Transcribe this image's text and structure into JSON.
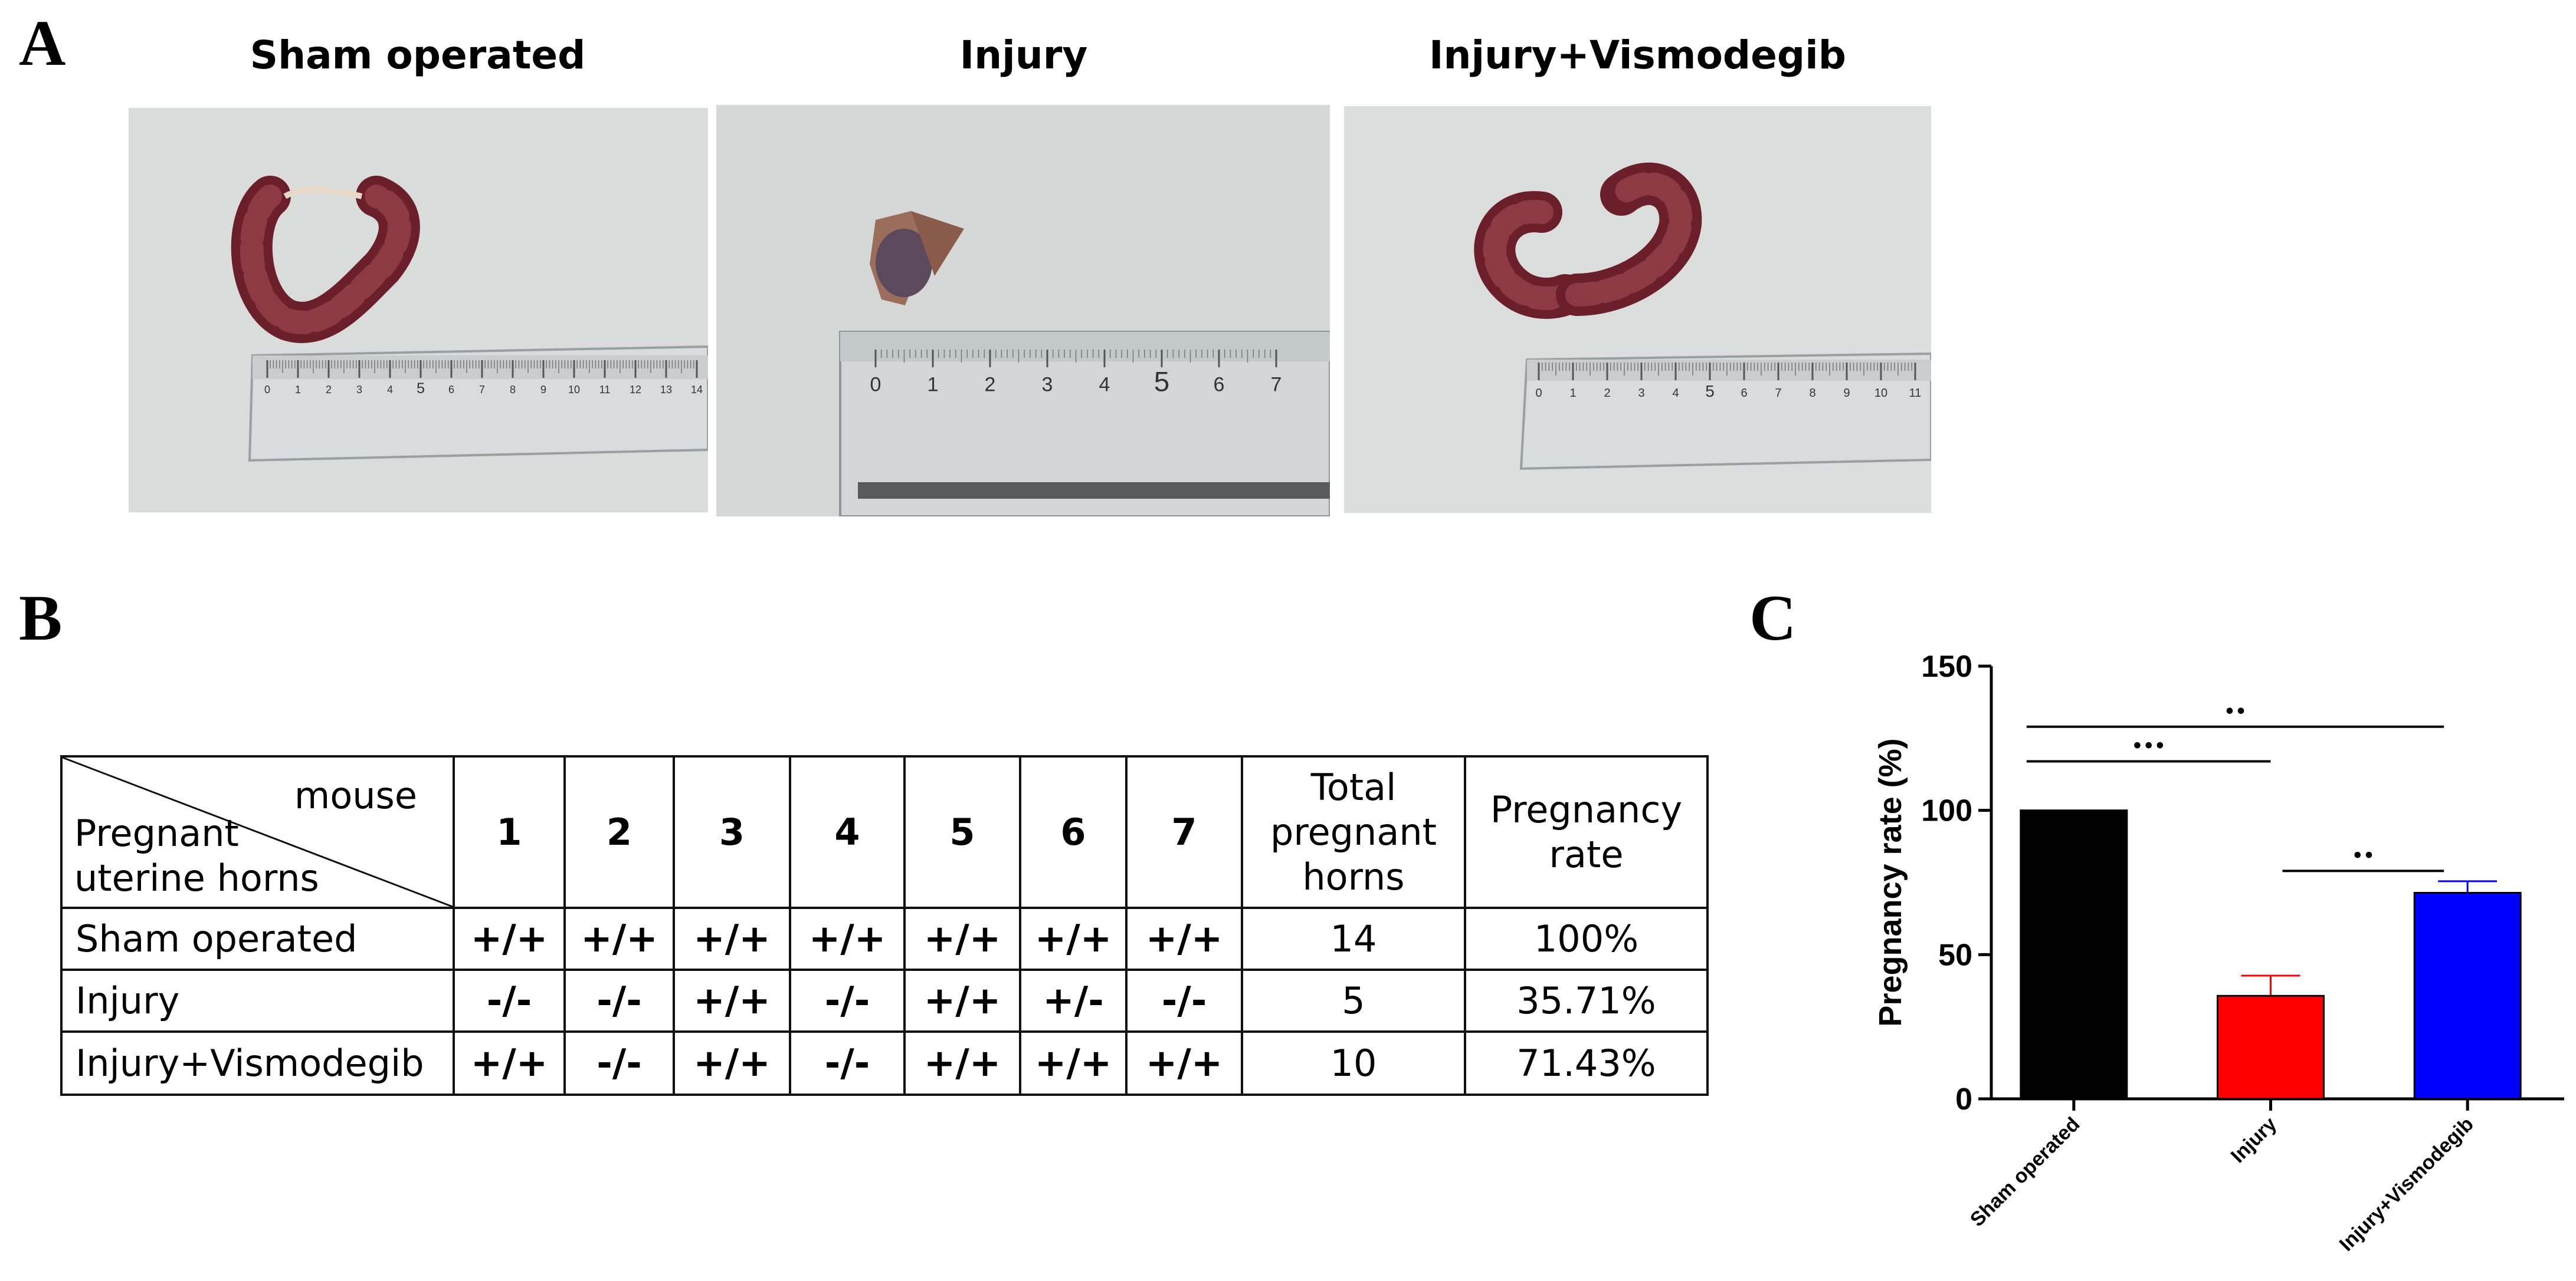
{
  "panels": {
    "a": "A",
    "b": "B",
    "c": "C"
  },
  "photos": [
    {
      "title": "Sham operated",
      "ruler_labels": [
        "0",
        "1",
        "2",
        "3",
        "4",
        "5",
        "6",
        "7",
        "8",
        "9",
        "10",
        "11",
        "12",
        "13",
        "14"
      ]
    },
    {
      "title": "Injury",
      "ruler_labels": [
        "0",
        "1",
        "2",
        "3",
        "4",
        "5",
        "6",
        "7"
      ]
    },
    {
      "title": "Injury+Vismodegib",
      "ruler_labels": [
        "0",
        "1",
        "2",
        "3",
        "4",
        "5",
        "6",
        "7",
        "8",
        "9",
        "10",
        "11"
      ]
    }
  ],
  "table": {
    "corner_top": "mouse",
    "corner_bottom_line1": "Pregnant",
    "corner_bottom_line2": "uterine horns",
    "mice": [
      "1",
      "2",
      "3",
      "4",
      "5",
      "6",
      "7"
    ],
    "total_line1": "Total",
    "total_line2": "pregnant",
    "total_line3": "horns",
    "rate_line1": "Pregnancy",
    "rate_line2": "rate",
    "rows": [
      {
        "group": "Sham operated",
        "values": [
          "+/+",
          "+/+",
          "+/+",
          "+/+",
          "+/+",
          "+/+",
          "+/+"
        ],
        "total": "14",
        "rate": "100%"
      },
      {
        "group": "Injury",
        "values": [
          "-/-",
          "-/-",
          "+/+",
          "-/-",
          "+/+",
          "+/-",
          "-/-"
        ],
        "total": "5",
        "rate": "35.71%"
      },
      {
        "group": "Injury+Vismodegib",
        "values": [
          "+/+",
          "-/-",
          "+/+",
          "-/-",
          "+/+",
          "+/+",
          "+/+"
        ],
        "total": "10",
        "rate": "71.43%"
      }
    ]
  },
  "chart_data": {
    "type": "bar",
    "title": "",
    "xlabel": "",
    "ylabel": "Pregnancy rate (%)",
    "ylim": [
      0,
      150
    ],
    "yticks": [
      0,
      50,
      100,
      150
    ],
    "categories": [
      "Sham operated",
      "Injury",
      "Injury+Vismodegib"
    ],
    "values": [
      100,
      35.71,
      71.43
    ],
    "errors": [
      0,
      7,
      4
    ],
    "colors": [
      "#000000",
      "#ff0000",
      "#0000ff"
    ],
    "significance": [
      {
        "from": 0,
        "to": 1,
        "label": "•••"
      },
      {
        "from": 0,
        "to": 2,
        "label": "••"
      },
      {
        "from": 1,
        "to": 2,
        "label": "••"
      }
    ]
  }
}
